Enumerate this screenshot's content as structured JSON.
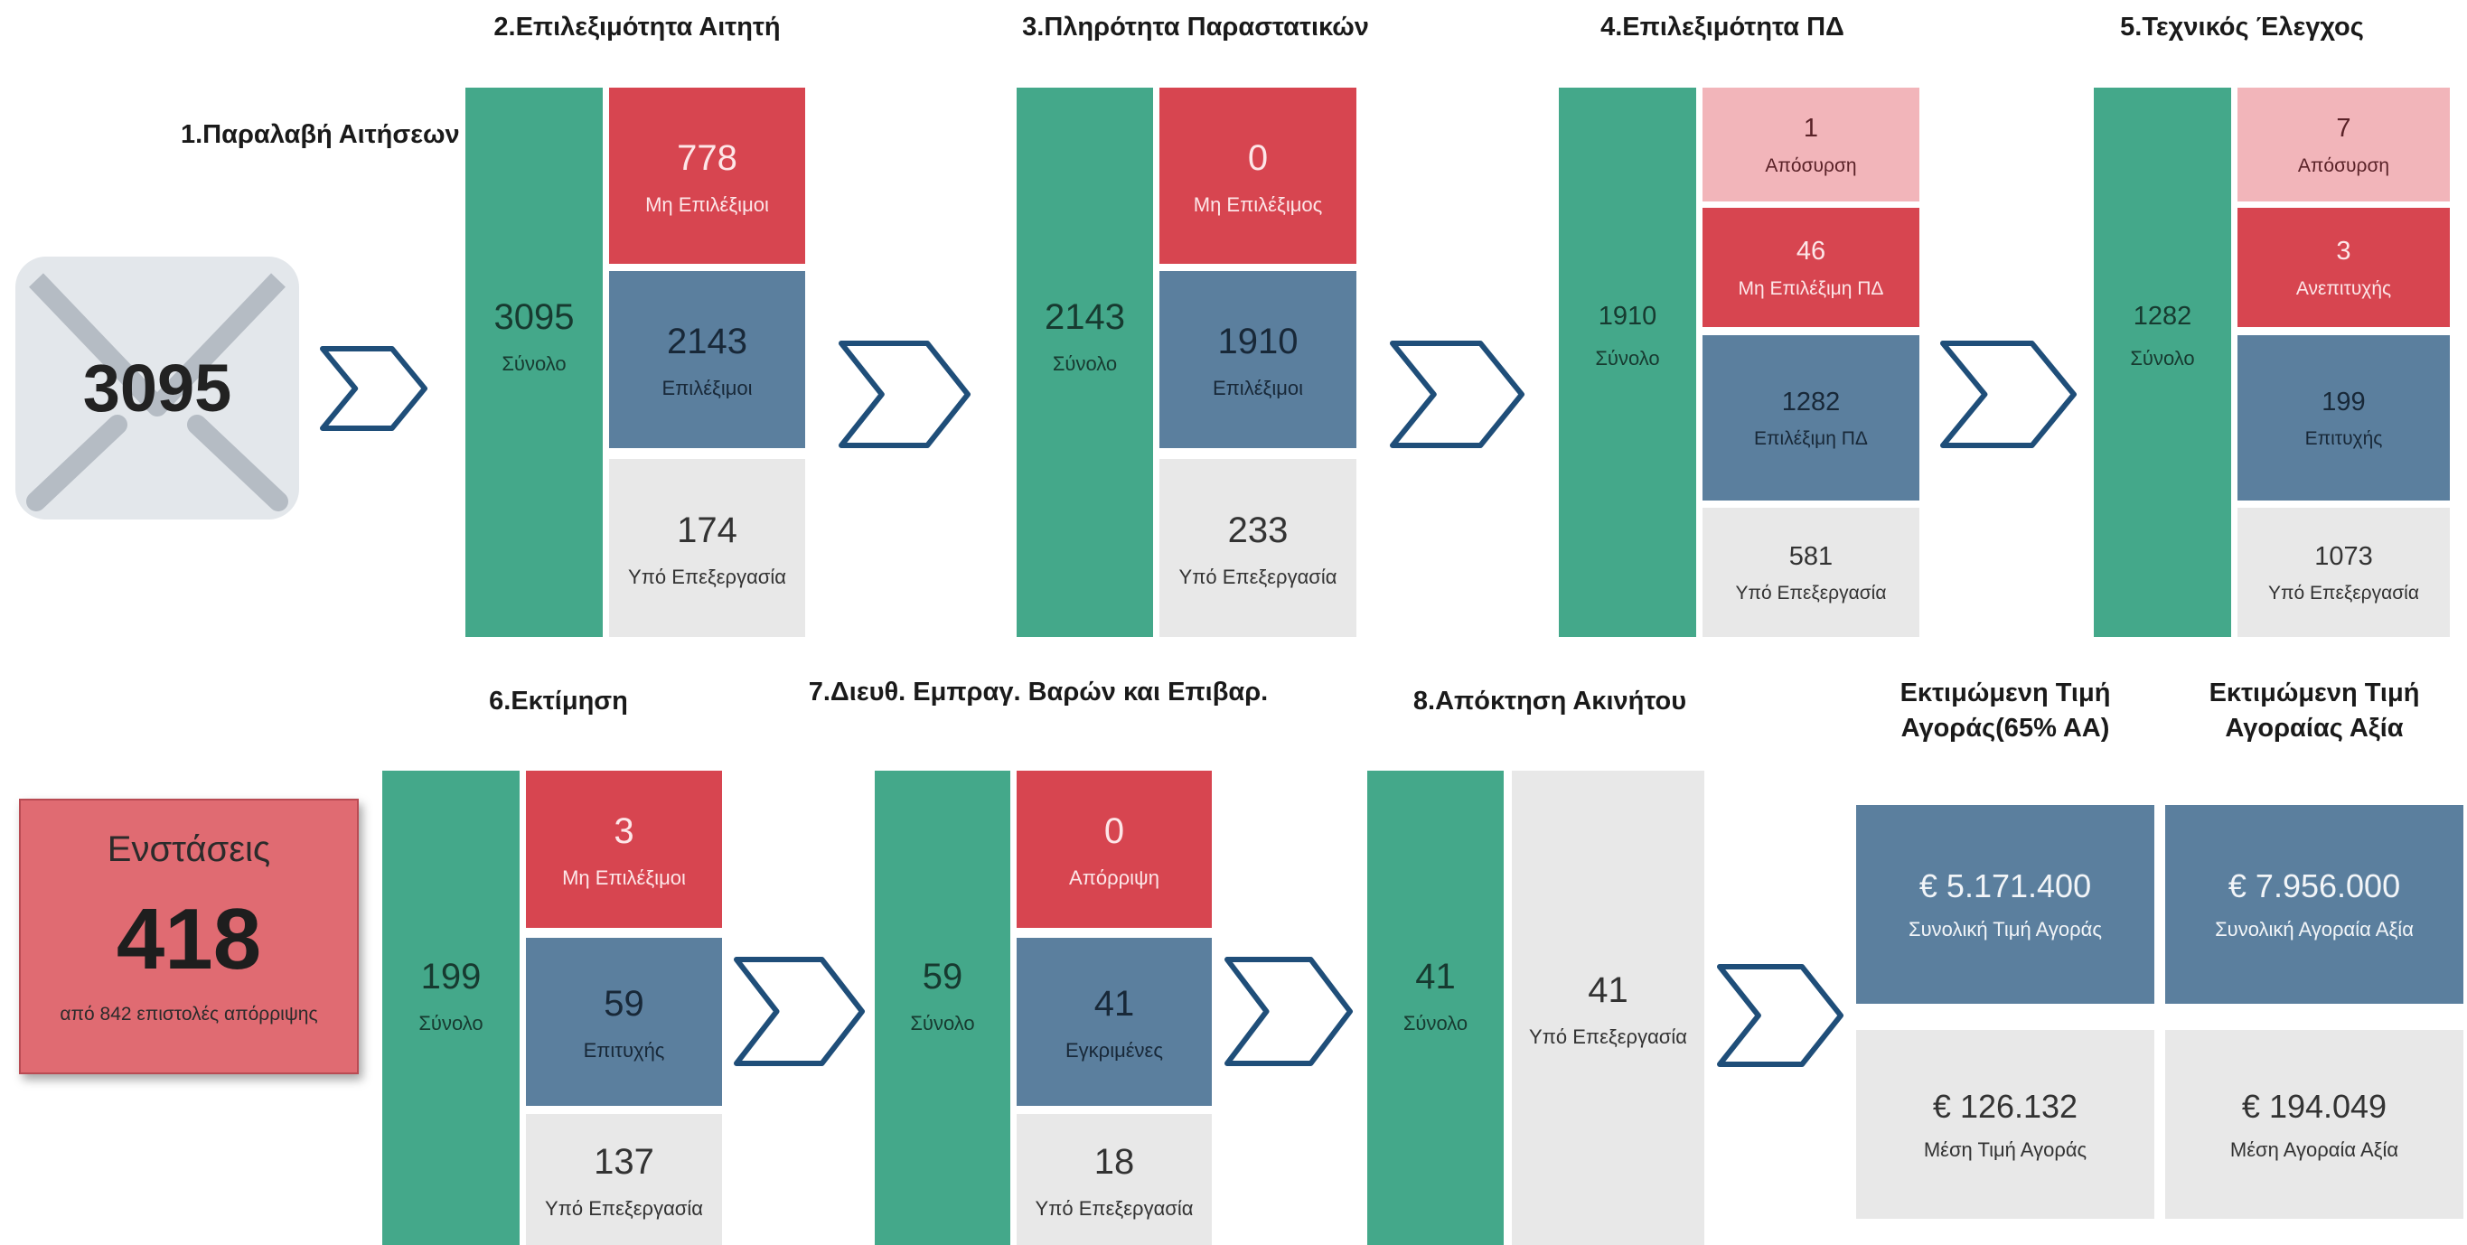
{
  "intake": {
    "title": "1.Παραλαβή Αιτήσεων",
    "value": 3095
  },
  "stages": [
    {
      "title": "2.Επιλεξιμότητα Αιτητή",
      "total": {
        "value": 3095,
        "label": "Σύνολο"
      },
      "boxes": [
        {
          "value": 778,
          "label": "Μη Επιλέξιμοι"
        },
        {
          "value": 2143,
          "label": "Επιλέξιμοι"
        },
        {
          "value": 174,
          "label": "Υπό Επεξεργασία"
        }
      ]
    },
    {
      "title": "3.Πληρότητα Παραστατικών",
      "total": {
        "value": 2143,
        "label": "Σύνολο"
      },
      "boxes": [
        {
          "value": 0,
          "label": "Μη Επιλέξιμος"
        },
        {
          "value": 1910,
          "label": "Επιλέξιμοι"
        },
        {
          "value": 233,
          "label": "Υπό Επεξεργασία"
        }
      ]
    },
    {
      "title": "4.Επιλεξιμότητα ΠΔ",
      "total": {
        "value": 1910,
        "label": "Σύνολο"
      },
      "boxes": [
        {
          "value": 1,
          "label": "Απόσυρση"
        },
        {
          "value": 46,
          "label": "Μη Επιλέξιμη ΠΔ"
        },
        {
          "value": 1282,
          "label": "Επιλέξιμη ΠΔ"
        },
        {
          "value": 581,
          "label": "Υπό Επεξεργασία"
        }
      ]
    },
    {
      "title": "5.Τεχνικός Έλεγχος",
      "total": {
        "value": 1282,
        "label": "Σύνολο"
      },
      "boxes": [
        {
          "value": 7,
          "label": "Απόσυρση"
        },
        {
          "value": 3,
          "label": "Ανεπιτυχής"
        },
        {
          "value": 199,
          "label": "Επιτυχής"
        },
        {
          "value": 1073,
          "label": "Υπό Επεξεργασία"
        }
      ]
    },
    {
      "title": "6.Εκτίμηση",
      "total": {
        "value": 199,
        "label": "Σύνολο"
      },
      "boxes": [
        {
          "value": 3,
          "label": "Μη Επιλέξιμοι"
        },
        {
          "value": 59,
          "label": "Επιτυχής"
        },
        {
          "value": 137,
          "label": "Υπό Επεξεργασία"
        }
      ]
    },
    {
      "title": "7.Διευθ. Εμπραγ. Βαρών και Επιβαρ.",
      "total": {
        "value": 59,
        "label": "Σύνολο"
      },
      "boxes": [
        {
          "value": 0,
          "label": "Απόρριψη"
        },
        {
          "value": 41,
          "label": "Εγκριμένες"
        },
        {
          "value": 18,
          "label": "Υπό Επεξεργασία"
        }
      ]
    },
    {
      "title": "8.Απόκτηση Ακινήτου",
      "total": {
        "value": 41,
        "label": "Σύνολο"
      },
      "boxes": [
        {
          "value": 41,
          "label": "Υπό Επεξεργασία"
        }
      ]
    }
  ],
  "objections": {
    "title": "Ενστάσεις",
    "value": 418,
    "note": "από 842 επιστολές απόρριψης"
  },
  "prices": [
    {
      "title": "Εκτιμώμενη Τιμή Αγοράς(65% ΑΑ)",
      "total": {
        "value": "€ 5.171.400",
        "label": "Συνολική Τιμή Αγοράς"
      },
      "average": {
        "value": "€ 126.132",
        "label": "Μέση Τιμή Αγοράς"
      }
    },
    {
      "title": "Εκτιμώμενη Τιμή Αγοραίας Αξία",
      "total": {
        "value": "€ 7.956.000",
        "label": "Συνολική Αγοραία Αξία"
      },
      "average": {
        "value": "€ 194.049",
        "label": "Μέση Αγοραία Αξία"
      }
    }
  ]
}
